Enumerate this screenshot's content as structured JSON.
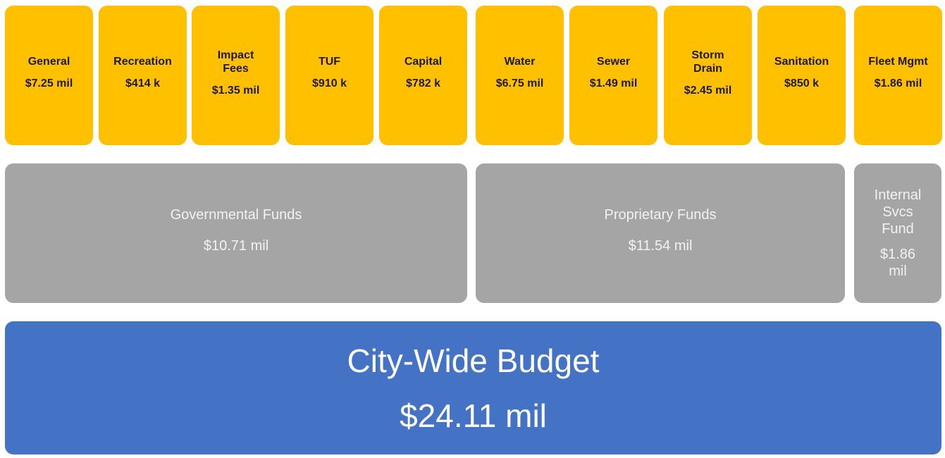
{
  "funds": [
    {
      "name": "General",
      "amount": "$7.25 mil"
    },
    {
      "name": "Recreation",
      "amount": "$414 k"
    },
    {
      "name": "Impact Fees",
      "amount": "$1.35 mil"
    },
    {
      "name": "TUF",
      "amount": "$910 k"
    },
    {
      "name": "Capital",
      "amount": "$782 k"
    },
    {
      "name": "Water",
      "amount": "$6.75 mil"
    },
    {
      "name": "Sewer",
      "amount": "$1.49 mil"
    },
    {
      "name": "Storm Drain",
      "amount": "$2.45 mil"
    },
    {
      "name": "Sanitation",
      "amount": "$850 k"
    },
    {
      "name": "Fleet Mgmt",
      "amount": "$1.86 mil"
    }
  ],
  "groups": [
    {
      "name": "Governmental Funds",
      "amount": "$10.71 mil"
    },
    {
      "name": "Proprietary Funds",
      "amount": "$11.54 mil"
    },
    {
      "name": "Internal Svcs Fund",
      "amount": "$1.86 mil"
    }
  ],
  "total": {
    "name": "City-Wide Budget",
    "amount": "$24.11 mil"
  }
}
